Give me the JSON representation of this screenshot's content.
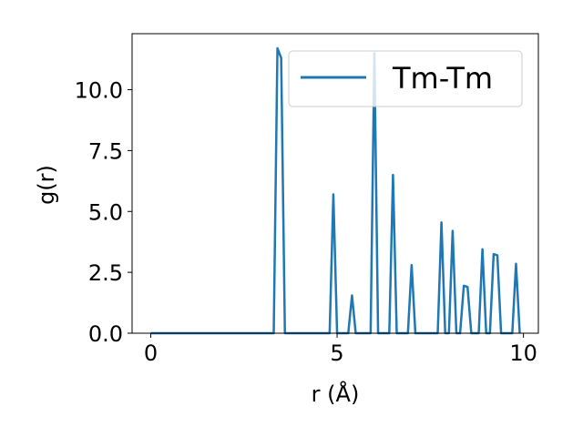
{
  "chart_data": {
    "type": "line",
    "xlabel": "r (Å)",
    "ylabel": "g(r)",
    "xlim": [
      -0.5,
      10.4
    ],
    "ylim": [
      0,
      12.3
    ],
    "xticks": [
      0,
      5,
      10
    ],
    "xtick_labels": [
      "0",
      "5",
      "10"
    ],
    "yticks": [
      0.0,
      2.5,
      5.0,
      7.5,
      10.0
    ],
    "ytick_labels": [
      "0.0",
      "2.5",
      "5.0",
      "7.5",
      "10.0"
    ],
    "grid": false,
    "legend_position": "top-right",
    "series": [
      {
        "name": "Tm-Tm",
        "color": "#1f77b4",
        "x": [
          0,
          3.3,
          3.4,
          3.5,
          3.6,
          4.8,
          4.9,
          5.0,
          5.2,
          5.3,
          5.4,
          5.5,
          5.9,
          6.0,
          6.1,
          6.4,
          6.5,
          6.6,
          6.9,
          7.0,
          7.1,
          7.7,
          7.8,
          7.9,
          8.0,
          8.1,
          8.2,
          8.3,
          8.4,
          8.5,
          8.6,
          8.8,
          8.9,
          9.0,
          9.1,
          9.2,
          9.3,
          9.4,
          9.7,
          9.8,
          9.9
        ],
        "y": [
          0,
          0,
          11.7,
          11.3,
          0,
          0,
          5.7,
          0,
          0,
          0,
          1.55,
          0,
          0,
          11.5,
          0,
          0,
          6.5,
          0,
          0,
          2.8,
          0,
          0,
          4.55,
          0,
          0,
          4.2,
          0,
          0,
          1.95,
          1.9,
          0,
          0,
          3.45,
          0,
          0,
          3.25,
          3.2,
          0,
          0,
          2.85,
          0
        ]
      }
    ]
  }
}
